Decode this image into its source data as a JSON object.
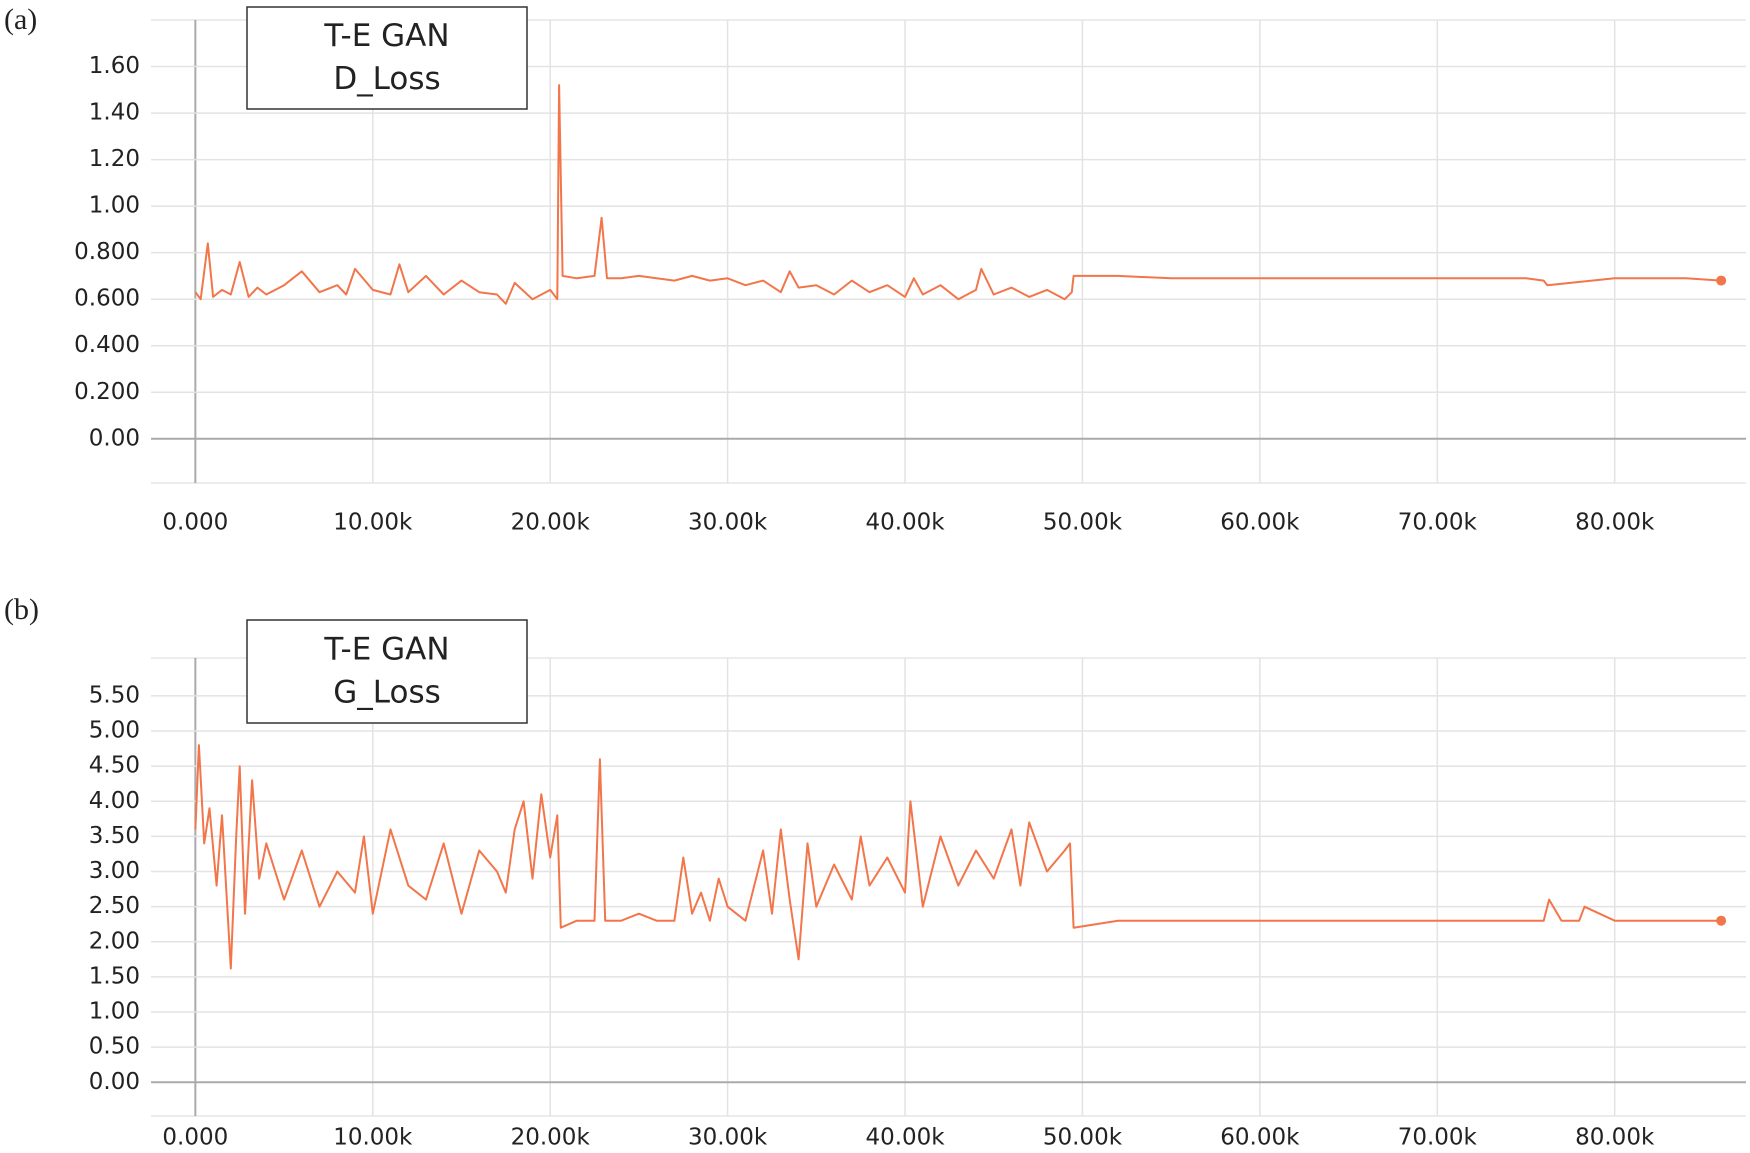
{
  "chart_data": [
    {
      "type": "line",
      "panel_label": "(a)",
      "legend_title": "T-E GAN",
      "x": [
        0,
        300,
        700,
        1000,
        1500,
        2000,
        2500,
        3000,
        3500,
        4000,
        5000,
        6000,
        7000,
        8000,
        8500,
        9000,
        10000,
        11000,
        11500,
        12000,
        13000,
        14000,
        15000,
        16000,
        17000,
        17500,
        18000,
        19000,
        20000,
        20400,
        20500,
        20700,
        21500,
        22500,
        22900,
        23200,
        24000,
        25000,
        26000,
        27000,
        28000,
        29000,
        30000,
        31000,
        32000,
        33000,
        33500,
        34000,
        35000,
        36000,
        37000,
        38000,
        39000,
        40000,
        40500,
        41000,
        42000,
        43000,
        44000,
        44300,
        45000,
        46000,
        47000,
        48000,
        49000,
        49400,
        49500,
        52000,
        55000,
        60000,
        65000,
        70000,
        75000,
        76000,
        76200,
        80000,
        84000,
        86000
      ],
      "series": [
        {
          "name": "D_Loss",
          "color": "#f2764a",
          "values": [
            0.63,
            0.6,
            0.84,
            0.61,
            0.64,
            0.62,
            0.76,
            0.61,
            0.65,
            0.62,
            0.66,
            0.72,
            0.63,
            0.66,
            0.62,
            0.73,
            0.64,
            0.62,
            0.75,
            0.63,
            0.7,
            0.62,
            0.68,
            0.63,
            0.62,
            0.58,
            0.67,
            0.6,
            0.64,
            0.6,
            1.52,
            0.7,
            0.69,
            0.7,
            0.95,
            0.69,
            0.69,
            0.7,
            0.69,
            0.68,
            0.7,
            0.68,
            0.69,
            0.66,
            0.68,
            0.63,
            0.72,
            0.65,
            0.66,
            0.62,
            0.68,
            0.63,
            0.66,
            0.61,
            0.69,
            0.62,
            0.66,
            0.6,
            0.64,
            0.73,
            0.62,
            0.65,
            0.61,
            0.64,
            0.6,
            0.63,
            0.7,
            0.7,
            0.69,
            0.69,
            0.69,
            0.69,
            0.69,
            0.68,
            0.66,
            0.69,
            0.69,
            0.68
          ]
        }
      ],
      "xlim": [
        -2500,
        87400
      ],
      "xticks": [
        {
          "value": 0,
          "label": "0.000"
        },
        {
          "value": 10000,
          "label": "10.00k"
        },
        {
          "value": 20000,
          "label": "20.00k"
        },
        {
          "value": 30000,
          "label": "30.00k"
        },
        {
          "value": 40000,
          "label": "40.00k"
        },
        {
          "value": 50000,
          "label": "50.00k"
        },
        {
          "value": 60000,
          "label": "60.00k"
        },
        {
          "value": 70000,
          "label": "70.00k"
        },
        {
          "value": 80000,
          "label": "80.00k"
        }
      ],
      "ylim": [
        -0.19,
        1.8
      ],
      "yticks": [
        {
          "value": 0,
          "label": "0.00"
        },
        {
          "value": 0.2,
          "label": "0.200"
        },
        {
          "value": 0.4,
          "label": "0.400"
        },
        {
          "value": 0.6,
          "label": "0.600"
        },
        {
          "value": 0.8,
          "label": "0.800"
        },
        {
          "value": 1.0,
          "label": "1.00"
        },
        {
          "value": 1.2,
          "label": "1.20"
        },
        {
          "value": 1.4,
          "label": "1.40"
        },
        {
          "value": 1.6,
          "label": "1.60"
        }
      ],
      "grid": true
    },
    {
      "type": "line",
      "panel_label": "(b)",
      "legend_title": "T-E GAN",
      "x": [
        0,
        200,
        500,
        800,
        1200,
        1500,
        2000,
        2300,
        2500,
        2800,
        3200,
        3600,
        4000,
        5000,
        6000,
        7000,
        8000,
        9000,
        9500,
        10000,
        11000,
        12000,
        13000,
        14000,
        15000,
        16000,
        17000,
        17500,
        18000,
        18500,
        19000,
        19500,
        20000,
        20400,
        20600,
        21500,
        22500,
        22800,
        23100,
        24000,
        25000,
        26000,
        27000,
        27500,
        28000,
        28500,
        29000,
        29500,
        30000,
        31000,
        32000,
        32500,
        33000,
        33500,
        34000,
        34500,
        35000,
        36000,
        37000,
        37500,
        38000,
        39000,
        40000,
        40300,
        41000,
        42000,
        43000,
        44000,
        45000,
        46000,
        46500,
        47000,
        48000,
        49000,
        49300,
        49500,
        52000,
        55000,
        60000,
        65000,
        70000,
        75000,
        76000,
        76300,
        77000,
        78000,
        78300,
        80000,
        84000,
        86000
      ],
      "series": [
        {
          "name": "G_Loss",
          "color": "#f2764a",
          "values": [
            3.6,
            4.8,
            3.4,
            3.9,
            2.8,
            3.8,
            1.62,
            3.5,
            4.5,
            2.4,
            4.3,
            2.9,
            3.4,
            2.6,
            3.3,
            2.5,
            3.0,
            2.7,
            3.5,
            2.4,
            3.6,
            2.8,
            2.6,
            3.4,
            2.4,
            3.3,
            3.0,
            2.7,
            3.6,
            4.0,
            2.9,
            4.1,
            3.2,
            3.8,
            2.2,
            2.3,
            2.3,
            4.6,
            2.3,
            2.3,
            2.4,
            2.3,
            2.3,
            3.2,
            2.4,
            2.7,
            2.3,
            2.9,
            2.5,
            2.3,
            3.3,
            2.4,
            3.6,
            2.6,
            1.75,
            3.4,
            2.5,
            3.1,
            2.6,
            3.5,
            2.8,
            3.2,
            2.7,
            4.0,
            2.5,
            3.5,
            2.8,
            3.3,
            2.9,
            3.6,
            2.8,
            3.7,
            3.0,
            3.3,
            3.4,
            2.2,
            2.3,
            2.3,
            2.3,
            2.3,
            2.3,
            2.3,
            2.3,
            2.6,
            2.3,
            2.3,
            2.5,
            2.3,
            2.3,
            2.3
          ]
        }
      ],
      "xlim": [
        -2500,
        87400
      ],
      "xticks": [
        {
          "value": 0,
          "label": "0.000"
        },
        {
          "value": 10000,
          "label": "10.00k"
        },
        {
          "value": 20000,
          "label": "20.00k"
        },
        {
          "value": 30000,
          "label": "30.00k"
        },
        {
          "value": 40000,
          "label": "40.00k"
        },
        {
          "value": 50000,
          "label": "50.00k"
        },
        {
          "value": 60000,
          "label": "60.00k"
        },
        {
          "value": 70000,
          "label": "70.00k"
        },
        {
          "value": 80000,
          "label": "80.00k"
        }
      ],
      "ylim": [
        -0.48,
        6.04
      ],
      "yticks": [
        {
          "value": 0,
          "label": "0.00"
        },
        {
          "value": 0.5,
          "label": "0.50"
        },
        {
          "value": 1.0,
          "label": "1.00"
        },
        {
          "value": 1.5,
          "label": "1.50"
        },
        {
          "value": 2.0,
          "label": "2.00"
        },
        {
          "value": 2.5,
          "label": "2.50"
        },
        {
          "value": 3.0,
          "label": "3.00"
        },
        {
          "value": 3.5,
          "label": "3.50"
        },
        {
          "value": 4.0,
          "label": "4.00"
        },
        {
          "value": 4.5,
          "label": "4.50"
        },
        {
          "value": 5.0,
          "label": "5.00"
        },
        {
          "value": 5.5,
          "label": "5.50"
        }
      ],
      "grid": true
    }
  ]
}
